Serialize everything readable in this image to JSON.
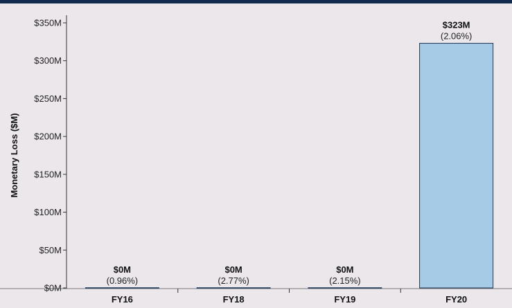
{
  "chart_data": {
    "type": "bar",
    "title": "",
    "xlabel": "",
    "ylabel": "Monetary Loss ($M)",
    "categories": [
      "FY16",
      "FY18",
      "FY19",
      "FY20"
    ],
    "values": [
      0,
      0,
      0,
      323
    ],
    "value_labels": [
      "$0M",
      "$0M",
      "$0M",
      "$323M"
    ],
    "percent_labels": [
      "(0.96%)",
      "(2.77%)",
      "(2.15%)",
      "(2.06%)"
    ],
    "ylim": [
      0,
      350
    ],
    "y_ticks": [
      0,
      50,
      100,
      150,
      200,
      250,
      300,
      350
    ],
    "y_tick_labels": [
      "$0M",
      "$50M",
      "$100M",
      "$150M",
      "$200M",
      "$250M",
      "$300M",
      "$350M"
    ],
    "grid": false,
    "legend": "none",
    "colors": {
      "bar_fill": "#a6cbe6",
      "bar_stroke": "#1f3556",
      "background": "#ebe7eb",
      "top_bar": "#132a4f",
      "axis": "#333333"
    }
  }
}
